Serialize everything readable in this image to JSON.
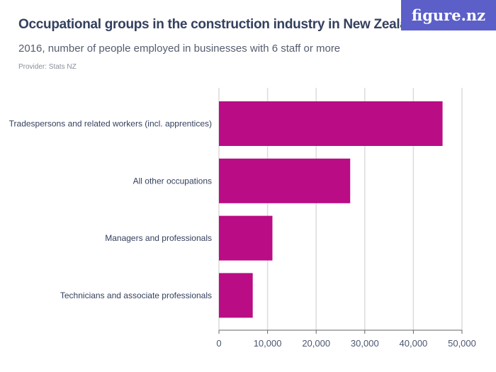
{
  "header": {
    "title": "Occupational groups in the construction industry in New Zealand",
    "subtitle": "2016, number of people employed in businesses with 6 staff or more",
    "provider": "Provider: Stats NZ",
    "logo": "figure.nz"
  },
  "colors": {
    "bar": "#b90c85",
    "logo_bg": "#5b5fc7",
    "text": "#34405e"
  },
  "chart_data": {
    "type": "bar",
    "orientation": "horizontal",
    "categories": [
      "Tradespersons and related workers (incl. apprentices)",
      "All other occupations",
      "Managers and professionals",
      "Technicians and associate professionals"
    ],
    "values": [
      46000,
      27000,
      11000,
      6950
    ],
    "xlim": [
      0,
      50000
    ],
    "xticks": [
      0,
      10000,
      20000,
      30000,
      40000,
      50000
    ],
    "xtick_labels": [
      "0",
      "10,000",
      "20,000",
      "30,000",
      "40,000",
      "50,000"
    ],
    "grid": true
  }
}
